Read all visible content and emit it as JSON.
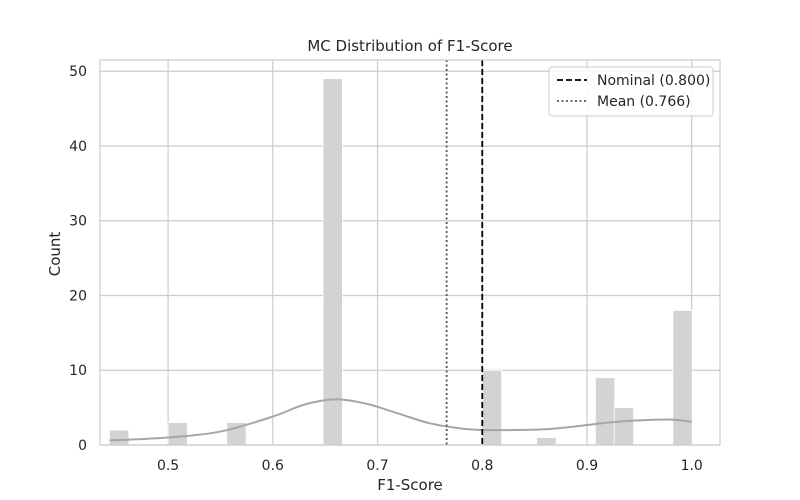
{
  "chart_data": {
    "type": "histogram",
    "title": "MC Distribution of F1-Score",
    "xlabel": "F1-Score",
    "ylabel": "Count",
    "xlim": [
      0.435,
      1.027
    ],
    "ylim": [
      0,
      51.5
    ],
    "x_ticks": [
      0.5,
      0.6,
      0.7,
      0.8,
      0.9,
      1.0
    ],
    "x_tick_labels": [
      "0.5",
      "0.6",
      "0.7",
      "0.8",
      "0.9",
      "1.0"
    ],
    "y_ticks": [
      0,
      10,
      20,
      30,
      40,
      50
    ],
    "y_tick_labels": [
      "0",
      "10",
      "20",
      "30",
      "40",
      "50"
    ],
    "grid": true,
    "legend_position": "top-right",
    "bin_width": 0.0185,
    "bars": [
      {
        "x_start": 0.444,
        "count": 2
      },
      {
        "x_start": 0.5,
        "count": 3
      },
      {
        "x_start": 0.556,
        "count": 3
      },
      {
        "x_start": 0.648,
        "count": 49
      },
      {
        "x_start": 0.8,
        "count": 10
      },
      {
        "x_start": 0.852,
        "count": 1
      },
      {
        "x_start": 0.908,
        "count": 9
      },
      {
        "x_start": 0.926,
        "count": 5
      },
      {
        "x_start": 0.982,
        "count": 18
      }
    ],
    "kde": {
      "x": [
        0.444,
        0.5,
        0.55,
        0.6,
        0.63,
        0.66,
        0.69,
        0.72,
        0.75,
        0.78,
        0.8,
        0.83,
        0.86,
        0.89,
        0.92,
        0.95,
        0.98,
        1.0
      ],
      "y": [
        0.6,
        1.0,
        1.8,
        3.8,
        5.4,
        6.1,
        5.5,
        4.2,
        2.9,
        2.2,
        2.0,
        2.0,
        2.1,
        2.5,
        3.0,
        3.3,
        3.4,
        3.1
      ]
    },
    "reference_lines": [
      {
        "name": "Nominal (0.800)",
        "x": 0.8,
        "style": "dashed",
        "color": "#000000"
      },
      {
        "name": "Mean (0.766)",
        "x": 0.766,
        "style": "dotted",
        "color": "#555555"
      }
    ],
    "colors": {
      "bar": "#d3d3d3",
      "kde": "#a6a6a6",
      "grid": "#cccccc",
      "frame": "#cccccc"
    }
  }
}
